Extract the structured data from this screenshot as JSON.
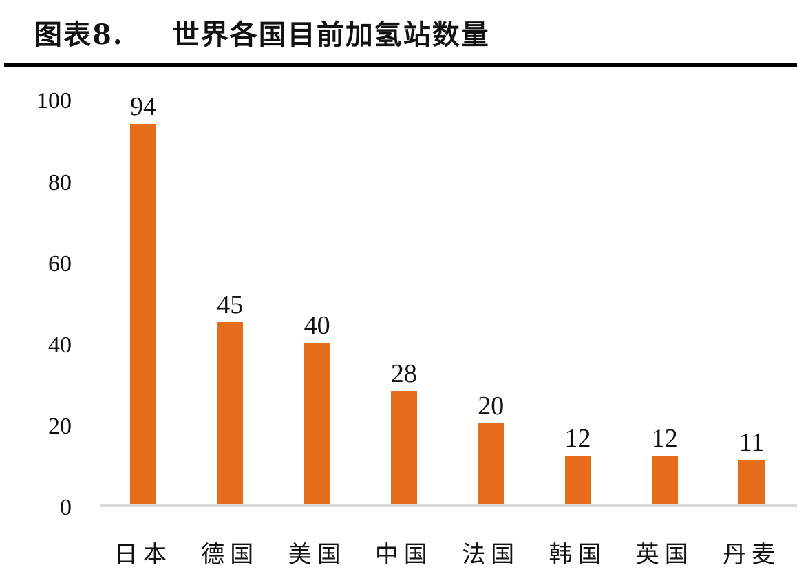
{
  "header": {
    "figure_label": "图表8.",
    "title": "世界各国目前加氢站数量"
  },
  "chart_data": {
    "type": "bar",
    "title": "世界各国目前加氢站数量",
    "categories": [
      "日本",
      "德国",
      "美国",
      "中国",
      "法国",
      "韩国",
      "英国",
      "丹麦"
    ],
    "values": [
      94,
      45,
      40,
      28,
      20,
      12,
      12,
      11
    ],
    "value_labels": [
      "94",
      "45",
      "40",
      "28",
      "20",
      "12",
      "12",
      "11"
    ],
    "xlabel": "",
    "ylabel": "",
    "ylim": [
      0,
      100
    ],
    "yticks": [
      "100",
      "80",
      "60",
      "40",
      "20",
      "0"
    ],
    "grid": false,
    "legend": null,
    "bar_color": "#e46c1a",
    "axis_color": "#d9d9d9"
  }
}
